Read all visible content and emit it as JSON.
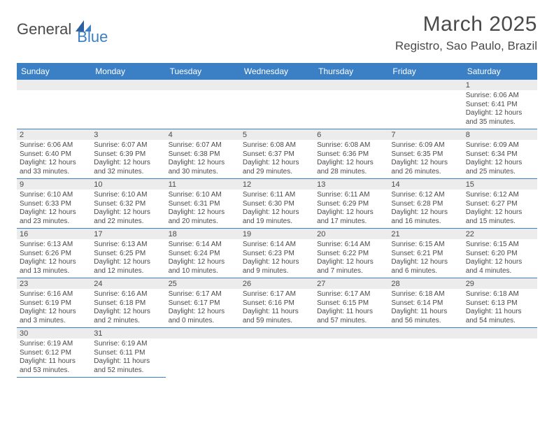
{
  "brand": {
    "part1": "General",
    "part2": "Blue"
  },
  "title": "March 2025",
  "location": "Registro, Sao Paulo, Brazil",
  "colors": {
    "accent": "#3b7fc4",
    "text": "#4a4a4a",
    "daynum_bg": "#ececec",
    "bg": "#ffffff"
  },
  "day_headers": [
    "Sunday",
    "Monday",
    "Tuesday",
    "Wednesday",
    "Thursday",
    "Friday",
    "Saturday"
  ],
  "weeks": [
    [
      null,
      null,
      null,
      null,
      null,
      null,
      {
        "n": "1",
        "sr": "Sunrise: 6:06 AM",
        "ss": "Sunset: 6:41 PM",
        "d1": "Daylight: 12 hours",
        "d2": "and 35 minutes."
      }
    ],
    [
      {
        "n": "2",
        "sr": "Sunrise: 6:06 AM",
        "ss": "Sunset: 6:40 PM",
        "d1": "Daylight: 12 hours",
        "d2": "and 33 minutes."
      },
      {
        "n": "3",
        "sr": "Sunrise: 6:07 AM",
        "ss": "Sunset: 6:39 PM",
        "d1": "Daylight: 12 hours",
        "d2": "and 32 minutes."
      },
      {
        "n": "4",
        "sr": "Sunrise: 6:07 AM",
        "ss": "Sunset: 6:38 PM",
        "d1": "Daylight: 12 hours",
        "d2": "and 30 minutes."
      },
      {
        "n": "5",
        "sr": "Sunrise: 6:08 AM",
        "ss": "Sunset: 6:37 PM",
        "d1": "Daylight: 12 hours",
        "d2": "and 29 minutes."
      },
      {
        "n": "6",
        "sr": "Sunrise: 6:08 AM",
        "ss": "Sunset: 6:36 PM",
        "d1": "Daylight: 12 hours",
        "d2": "and 28 minutes."
      },
      {
        "n": "7",
        "sr": "Sunrise: 6:09 AM",
        "ss": "Sunset: 6:35 PM",
        "d1": "Daylight: 12 hours",
        "d2": "and 26 minutes."
      },
      {
        "n": "8",
        "sr": "Sunrise: 6:09 AM",
        "ss": "Sunset: 6:34 PM",
        "d1": "Daylight: 12 hours",
        "d2": "and 25 minutes."
      }
    ],
    [
      {
        "n": "9",
        "sr": "Sunrise: 6:10 AM",
        "ss": "Sunset: 6:33 PM",
        "d1": "Daylight: 12 hours",
        "d2": "and 23 minutes."
      },
      {
        "n": "10",
        "sr": "Sunrise: 6:10 AM",
        "ss": "Sunset: 6:32 PM",
        "d1": "Daylight: 12 hours",
        "d2": "and 22 minutes."
      },
      {
        "n": "11",
        "sr": "Sunrise: 6:10 AM",
        "ss": "Sunset: 6:31 PM",
        "d1": "Daylight: 12 hours",
        "d2": "and 20 minutes."
      },
      {
        "n": "12",
        "sr": "Sunrise: 6:11 AM",
        "ss": "Sunset: 6:30 PM",
        "d1": "Daylight: 12 hours",
        "d2": "and 19 minutes."
      },
      {
        "n": "13",
        "sr": "Sunrise: 6:11 AM",
        "ss": "Sunset: 6:29 PM",
        "d1": "Daylight: 12 hours",
        "d2": "and 17 minutes."
      },
      {
        "n": "14",
        "sr": "Sunrise: 6:12 AM",
        "ss": "Sunset: 6:28 PM",
        "d1": "Daylight: 12 hours",
        "d2": "and 16 minutes."
      },
      {
        "n": "15",
        "sr": "Sunrise: 6:12 AM",
        "ss": "Sunset: 6:27 PM",
        "d1": "Daylight: 12 hours",
        "d2": "and 15 minutes."
      }
    ],
    [
      {
        "n": "16",
        "sr": "Sunrise: 6:13 AM",
        "ss": "Sunset: 6:26 PM",
        "d1": "Daylight: 12 hours",
        "d2": "and 13 minutes."
      },
      {
        "n": "17",
        "sr": "Sunrise: 6:13 AM",
        "ss": "Sunset: 6:25 PM",
        "d1": "Daylight: 12 hours",
        "d2": "and 12 minutes."
      },
      {
        "n": "18",
        "sr": "Sunrise: 6:14 AM",
        "ss": "Sunset: 6:24 PM",
        "d1": "Daylight: 12 hours",
        "d2": "and 10 minutes."
      },
      {
        "n": "19",
        "sr": "Sunrise: 6:14 AM",
        "ss": "Sunset: 6:23 PM",
        "d1": "Daylight: 12 hours",
        "d2": "and 9 minutes."
      },
      {
        "n": "20",
        "sr": "Sunrise: 6:14 AM",
        "ss": "Sunset: 6:22 PM",
        "d1": "Daylight: 12 hours",
        "d2": "and 7 minutes."
      },
      {
        "n": "21",
        "sr": "Sunrise: 6:15 AM",
        "ss": "Sunset: 6:21 PM",
        "d1": "Daylight: 12 hours",
        "d2": "and 6 minutes."
      },
      {
        "n": "22",
        "sr": "Sunrise: 6:15 AM",
        "ss": "Sunset: 6:20 PM",
        "d1": "Daylight: 12 hours",
        "d2": "and 4 minutes."
      }
    ],
    [
      {
        "n": "23",
        "sr": "Sunrise: 6:16 AM",
        "ss": "Sunset: 6:19 PM",
        "d1": "Daylight: 12 hours",
        "d2": "and 3 minutes."
      },
      {
        "n": "24",
        "sr": "Sunrise: 6:16 AM",
        "ss": "Sunset: 6:18 PM",
        "d1": "Daylight: 12 hours",
        "d2": "and 2 minutes."
      },
      {
        "n": "25",
        "sr": "Sunrise: 6:17 AM",
        "ss": "Sunset: 6:17 PM",
        "d1": "Daylight: 12 hours",
        "d2": "and 0 minutes."
      },
      {
        "n": "26",
        "sr": "Sunrise: 6:17 AM",
        "ss": "Sunset: 6:16 PM",
        "d1": "Daylight: 11 hours",
        "d2": "and 59 minutes."
      },
      {
        "n": "27",
        "sr": "Sunrise: 6:17 AM",
        "ss": "Sunset: 6:15 PM",
        "d1": "Daylight: 11 hours",
        "d2": "and 57 minutes."
      },
      {
        "n": "28",
        "sr": "Sunrise: 6:18 AM",
        "ss": "Sunset: 6:14 PM",
        "d1": "Daylight: 11 hours",
        "d2": "and 56 minutes."
      },
      {
        "n": "29",
        "sr": "Sunrise: 6:18 AM",
        "ss": "Sunset: 6:13 PM",
        "d1": "Daylight: 11 hours",
        "d2": "and 54 minutes."
      }
    ],
    [
      {
        "n": "30",
        "sr": "Sunrise: 6:19 AM",
        "ss": "Sunset: 6:12 PM",
        "d1": "Daylight: 11 hours",
        "d2": "and 53 minutes."
      },
      {
        "n": "31",
        "sr": "Sunrise: 6:19 AM",
        "ss": "Sunset: 6:11 PM",
        "d1": "Daylight: 11 hours",
        "d2": "and 52 minutes."
      },
      null,
      null,
      null,
      null,
      null
    ]
  ]
}
